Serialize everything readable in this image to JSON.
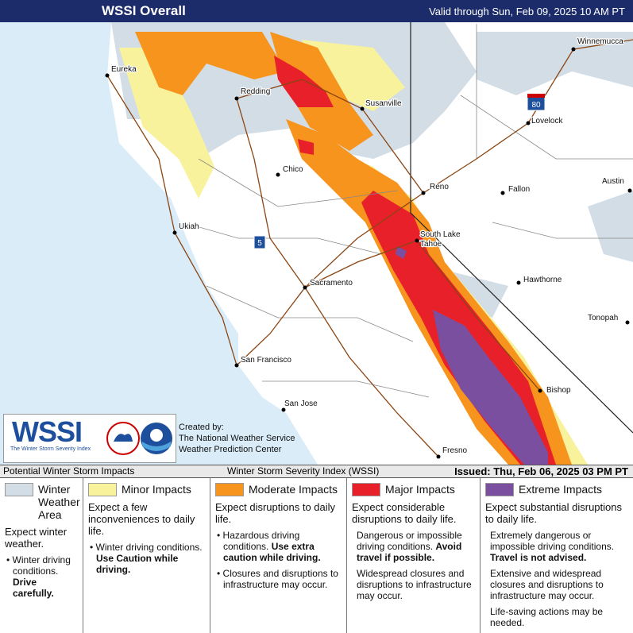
{
  "header": {
    "title": "WSSI Overall",
    "valid": "Valid through Sun, Feb 09, 2025 10 AM PT"
  },
  "cities": [
    "Eureka",
    "Redding",
    "Susanville",
    "Winnemucca",
    "Lovelock",
    "Chico",
    "Reno",
    "Fallon",
    "Austin",
    "Ukiah",
    [
      "South Lake",
      "Tahoe"
    ],
    "Hawthorne",
    "Sacramento",
    "Tonopah",
    "San Francisco",
    "Bishop",
    "San Jose",
    "Fresno"
  ],
  "highways": [
    "5",
    "80"
  ],
  "logo": {
    "acronym": "WSSI",
    "subtitle": "The Winter Storm Severity Index",
    "credit": [
      "Created by:",
      "The National Weather Service",
      "Weather Prediction Center"
    ]
  },
  "strip": {
    "left": "Potential Winter Storm Impacts",
    "center": "Winter Storm Severity Index (WSSI)",
    "right": "Issued: Thu, Feb 06, 2025 03 PM PT"
  },
  "legend": [
    {
      "label": "Winter Weather Area",
      "color": "#d3dde6",
      "headline": "Expect winter weather.",
      "details": [
        {
          "normal": "Winter driving conditions.",
          "emphasis": "Drive carefully."
        }
      ]
    },
    {
      "label": "Minor Impacts",
      "color": "#f8f29c",
      "headline": "Expect a few inconveniences to daily life.",
      "details": [
        {
          "normal": "Winter driving conditions.",
          "emphasis": "Use Caution while driving."
        }
      ]
    },
    {
      "label": "Moderate Impacts",
      "color": "#f7941d",
      "headline": "Expect disruptions to daily life.",
      "details": [
        {
          "normal": "Hazardous driving conditions.",
          "emphasis": "Use extra caution while driving."
        },
        {
          "normal": "Closures and disruptions to infrastructure may occur."
        }
      ]
    },
    {
      "label": "Major Impacts",
      "color": "#e8202a",
      "headline": "Expect considerable disruptions to daily life.",
      "details": [
        {
          "normal": "Dangerous or impossible driving conditions.",
          "emphasis": "Avoid travel if possible."
        },
        {
          "normal": "Widespread closures and disruptions to infrastructure may occur."
        }
      ]
    },
    {
      "label": "Extreme Impacts",
      "color": "#7b4fa0",
      "headline": "Expect substantial disruptions to daily life.",
      "details": [
        {
          "normal": "Extremely dangerous or impossible driving conditions.",
          "emphasis": "Travel is not advised."
        },
        {
          "normal": "Extensive and widespread closures and disruptions to infrastructure may occur."
        },
        {
          "normal": "Life-saving actions may be needed."
        }
      ]
    }
  ]
}
